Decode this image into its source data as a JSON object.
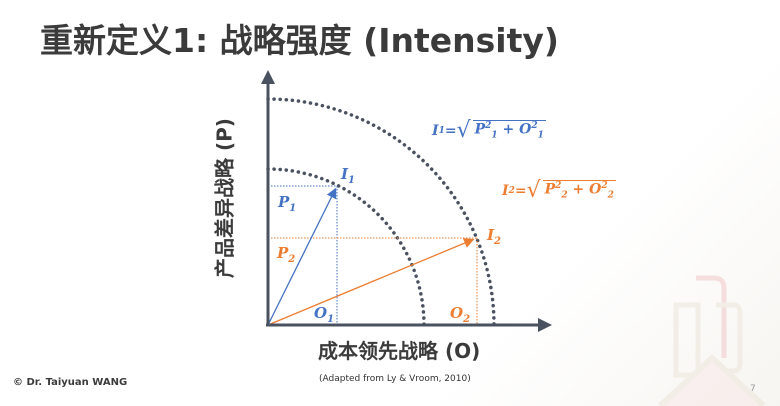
{
  "title": "重新定义1: 战略强度 (Intensity)",
  "y_axis_label": "产品差异战略 (P)",
  "x_axis_label": "成本领先战略 (O)",
  "labels": {
    "I1": "I",
    "I1_sub": "1",
    "I2": "I",
    "I2_sub": "2",
    "P1": "P",
    "P1_sub": "1",
    "P2": "P",
    "P2_sub": "2",
    "O1": "O",
    "O1_sub": "1",
    "O2": "O",
    "O2_sub": "2"
  },
  "equation1": {
    "lhs": "I",
    "lhs_sub": "1",
    "eq": " = ",
    "p": "P",
    "p_sub": "1",
    "plus": " + ",
    "o": "O",
    "o_sub": "1",
    "sq": "2"
  },
  "equation2": {
    "lhs": "I",
    "lhs_sub": "2",
    "eq": " = ",
    "p": "P",
    "p_sub": "2",
    "plus": " + ",
    "o": "O",
    "o_sub": "2",
    "sq": "2"
  },
  "colors": {
    "blue": "#4472c4",
    "orange": "#ed7d31",
    "axis": "#4a5260"
  },
  "footer": {
    "copyright": "© Dr. Taiyuan WANG",
    "source": "(Adapted from Ly & Vroom, 2010)",
    "page": "7"
  }
}
